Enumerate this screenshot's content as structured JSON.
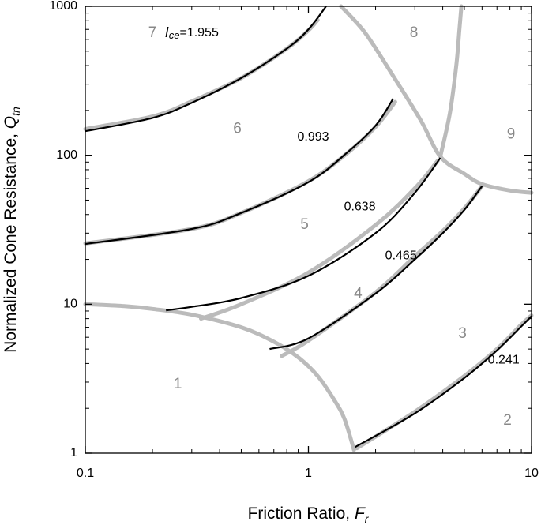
{
  "chart_data": {
    "type": "line",
    "xscale": "log",
    "yscale": "log",
    "xlim": [
      0.1,
      10
    ],
    "ylim": [
      1,
      1000
    ],
    "grid": false,
    "xlabel": {
      "text": "Friction Ratio, ",
      "var": "F",
      "sub": "r"
    },
    "ylabel": {
      "text": "Normalized Cone Resistance, ",
      "var": "Q",
      "sub": "tn"
    },
    "xticks": [
      {
        "value": 0.1,
        "label": "0.1"
      },
      {
        "value": 1,
        "label": "1"
      },
      {
        "value": 10,
        "label": "10"
      }
    ],
    "yticks": [
      {
        "value": 1,
        "label": "1"
      },
      {
        "value": 10,
        "label": "10"
      },
      {
        "value": 100,
        "label": "100"
      },
      {
        "value": 1000,
        "label": "1000"
      }
    ],
    "zone_boundaries": {
      "color": "#bbbbbb",
      "curves": [
        [
          [
            0.1,
            10
          ],
          [
            0.15,
            9.7
          ],
          [
            0.2,
            9.3
          ],
          [
            0.3,
            8.5
          ],
          [
            0.5,
            7.0
          ],
          [
            0.7,
            5.6
          ],
          [
            0.9,
            4.4
          ],
          [
            1.1,
            3.3
          ],
          [
            1.3,
            2.3
          ],
          [
            1.45,
            1.7
          ],
          [
            1.6,
            1.05
          ]
        ],
        [
          [
            0.1,
            150
          ],
          [
            0.2,
            182
          ],
          [
            0.3,
            230
          ],
          [
            0.5,
            330
          ],
          [
            0.8,
            520
          ],
          [
            1.0,
            690
          ],
          [
            1.1,
            810
          ]
        ],
        [
          [
            0.1,
            25.6
          ],
          [
            0.3,
            32
          ],
          [
            0.5,
            41
          ],
          [
            1.0,
            67
          ],
          [
            1.5,
            104
          ],
          [
            2.0,
            155
          ],
          [
            2.45,
            228
          ]
        ],
        [
          [
            0.33,
            8.0
          ],
          [
            0.5,
            10.0
          ],
          [
            1.0,
            16.3
          ],
          [
            2.0,
            34
          ],
          [
            3.0,
            60
          ],
          [
            3.8,
            92
          ]
        ],
        [
          [
            0.76,
            4.5
          ],
          [
            1.0,
            5.7
          ],
          [
            2.0,
            12.0
          ],
          [
            3.0,
            21
          ],
          [
            4.0,
            31
          ],
          [
            5.0,
            44
          ],
          [
            6.0,
            62
          ]
        ],
        [
          [
            1.65,
            1.08
          ],
          [
            3.0,
            1.9
          ],
          [
            5.0,
            3.3
          ],
          [
            7.0,
            5.0
          ],
          [
            9.0,
            7.3
          ],
          [
            10.0,
            8.4
          ]
        ],
        [
          [
            1.4,
            1000
          ],
          [
            1.8,
            660
          ],
          [
            2.4,
            340
          ],
          [
            3.2,
            170
          ],
          [
            3.9,
            98
          ],
          [
            5.0,
            75
          ],
          [
            6.0,
            64
          ],
          [
            8.0,
            58
          ],
          [
            10.0,
            56
          ]
        ],
        [
          [
            3.9,
            98
          ],
          [
            4.3,
            190
          ],
          [
            4.6,
            400
          ],
          [
            4.75,
            700
          ],
          [
            4.85,
            1000
          ]
        ]
      ]
    },
    "ice_curves": {
      "color": "#000000",
      "series": [
        {
          "name": "1.955",
          "points": [
            [
              0.1,
              145
            ],
            [
              0.2,
              178
            ],
            [
              0.3,
              225
            ],
            [
              0.5,
              330
            ],
            [
              0.8,
              520
            ],
            [
              1.0,
              700
            ],
            [
              1.2,
              1000
            ]
          ]
        },
        {
          "name": "0.993",
          "points": [
            [
              0.1,
              25.4
            ],
            [
              0.3,
              32
            ],
            [
              0.5,
              41
            ],
            [
              1.0,
              66
            ],
            [
              1.5,
              105
            ],
            [
              2.0,
              158
            ],
            [
              2.4,
              240
            ]
          ]
        },
        {
          "name": "0.638",
          "points": [
            [
              0.23,
              9.1
            ],
            [
              0.3,
              9.6
            ],
            [
              0.5,
              11.0
            ],
            [
              1.0,
              15.5
            ],
            [
              2.0,
              30
            ],
            [
              3.0,
              56
            ],
            [
              3.9,
              96
            ]
          ]
        },
        {
          "name": "0.465",
          "points": [
            [
              0.67,
              5.0
            ],
            [
              1.0,
              5.9
            ],
            [
              2.0,
              11.8
            ],
            [
              3.0,
              20
            ],
            [
              4.0,
              30
            ],
            [
              5.0,
              43
            ],
            [
              6.0,
              62
            ]
          ]
        },
        {
          "name": "0.241",
          "points": [
            [
              1.62,
              1.1
            ],
            [
              3.0,
              1.85
            ],
            [
              5.0,
              3.2
            ],
            [
              7.0,
              4.9
            ],
            [
              9.0,
              7.1
            ],
            [
              10.0,
              8.3
            ]
          ]
        }
      ]
    },
    "ice_labels": [
      {
        "prefix": "I",
        "sub": "ce",
        "text": "=1.955",
        "x": 0.3,
        "y": 660
      },
      {
        "text": "0.993",
        "x": 1.05,
        "y": 132
      },
      {
        "text": "0.638",
        "x": 1.7,
        "y": 45
      },
      {
        "text": "0.465",
        "x": 2.6,
        "y": 21
      },
      {
        "text": "0.241",
        "x": 7.5,
        "y": 4.2
      }
    ],
    "zone_labels": [
      {
        "text": "1",
        "x": 0.26,
        "y": 2.9
      },
      {
        "text": "2",
        "x": 7.8,
        "y": 1.65
      },
      {
        "text": "3",
        "x": 4.9,
        "y": 6.3
      },
      {
        "text": "4",
        "x": 1.67,
        "y": 11.7
      },
      {
        "text": "5",
        "x": 0.96,
        "y": 34
      },
      {
        "text": "6",
        "x": 0.48,
        "y": 150
      },
      {
        "text": "7",
        "x": 0.2,
        "y": 660
      },
      {
        "text": "8",
        "x": 2.97,
        "y": 660
      },
      {
        "text": "9",
        "x": 8.1,
        "y": 138
      }
    ]
  }
}
